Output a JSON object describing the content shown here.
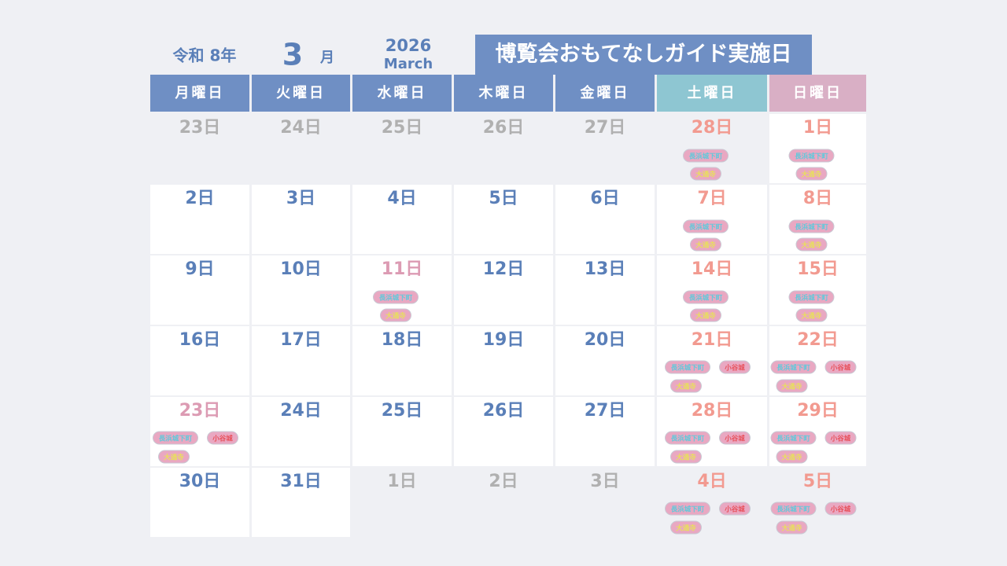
{
  "header": {
    "era": "令和 8年",
    "month": "3",
    "month_suffix": "月",
    "year": "2026",
    "month_en": "March",
    "title": "博覧会おもてなしガイド実施日"
  },
  "weekdays": [
    "月曜日",
    "火曜日",
    "水曜日",
    "木曜日",
    "金曜日",
    "土曜日",
    "日曜日"
  ],
  "weekday_colors": [
    "#6f8fc4",
    "#6f8fc4",
    "#6f8fc4",
    "#6f8fc4",
    "#6f8fc4",
    "#8ec6d2",
    "#d9afc5"
  ],
  "weeks": [
    [
      {
        "day": "23日",
        "tags": []
      },
      {
        "day": "24日",
        "tags": []
      },
      {
        "day": "25日",
        "tags": []
      },
      {
        "day": "26日",
        "tags": []
      },
      {
        "day": "27日",
        "tags": []
      },
      {
        "day": "28日",
        "tags": [
          {
            "label": "長浜城下町",
            "color": "#5fc9db"
          },
          {
            "label": "大通寺",
            "color": "#e8e05a"
          }
        ]
      },
      {
        "day": "1日",
        "tags": [
          {
            "label": "長浜城下町",
            "color": "#5fc9db"
          },
          {
            "label": "大通寺",
            "color": "#e8e05a"
          }
        ]
      }
    ],
    [
      {
        "day": "2日",
        "tags": []
      },
      {
        "day": "3日",
        "tags": []
      },
      {
        "day": "4日",
        "tags": []
      },
      {
        "day": "5日",
        "tags": []
      },
      {
        "day": "6日",
        "tags": []
      },
      {
        "day": "7日",
        "tags": [
          {
            "label": "長浜城下町",
            "color": "#5fc9db"
          },
          {
            "label": "大通寺",
            "color": "#e8e05a"
          }
        ]
      },
      {
        "day": "8日",
        "tags": [
          {
            "label": "長浜城下町",
            "color": "#5fc9db"
          },
          {
            "label": "大通寺",
            "color": "#e8e05a"
          }
        ]
      }
    ],
    [
      {
        "day": "9日",
        "tags": []
      },
      {
        "day": "10日",
        "tags": []
      },
      {
        "day": "11日",
        "tags": [
          {
            "label": "長浜城下町",
            "color": "#5fc9db"
          },
          {
            "label": "大通寺",
            "color": "#e8e05a"
          }
        ]
      },
      {
        "day": "12日",
        "tags": []
      },
      {
        "day": "13日",
        "tags": []
      },
      {
        "day": "14日",
        "tags": [
          {
            "label": "長浜城下町",
            "color": "#5fc9db"
          },
          {
            "label": "大通寺",
            "color": "#e8e05a"
          }
        ]
      },
      {
        "day": "15日",
        "tags": [
          {
            "label": "長浜城下町",
            "color": "#5fc9db"
          },
          {
            "label": "大通寺",
            "color": "#e8e05a"
          }
        ]
      }
    ],
    [
      {
        "day": "16日",
        "tags": []
      },
      {
        "day": "17日",
        "tags": []
      },
      {
        "day": "18日",
        "tags": []
      },
      {
        "day": "19日",
        "tags": []
      },
      {
        "day": "20日",
        "tags": []
      },
      {
        "day": "21日",
        "tags": [
          {
            "label": "長浜城下町",
            "color": "#5fc9db"
          },
          {
            "label": "小谷城",
            "color": "#e8505a"
          },
          {
            "label": "大通寺",
            "color": "#e8e05a"
          }
        ]
      },
      {
        "day": "22日",
        "tags": [
          {
            "label": "長浜城下町",
            "color": "#5fc9db"
          },
          {
            "label": "小谷城",
            "color": "#e8505a"
          },
          {
            "label": "大通寺",
            "color": "#e8e05a"
          }
        ]
      }
    ],
    [
      {
        "day": "23日",
        "tags": [
          {
            "label": "長浜城下町",
            "color": "#5fc9db"
          },
          {
            "label": "小谷城",
            "color": "#e8505a"
          },
          {
            "label": "大通寺",
            "color": "#e8e05a"
          }
        ]
      },
      {
        "day": "24日",
        "tags": []
      },
      {
        "day": "25日",
        "tags": []
      },
      {
        "day": "26日",
        "tags": []
      },
      {
        "day": "27日",
        "tags": []
      },
      {
        "day": "28日",
        "tags": [
          {
            "label": "長浜城下町",
            "color": "#5fc9db"
          },
          {
            "label": "小谷城",
            "color": "#e8505a"
          },
          {
            "label": "大通寺",
            "color": "#e8e05a"
          }
        ]
      },
      {
        "day": "29日",
        "tags": [
          {
            "label": "長浜城下町",
            "color": "#5fc9db"
          },
          {
            "label": "小谷城",
            "color": "#e8505a"
          },
          {
            "label": "大通寺",
            "color": "#e8e05a"
          }
        ]
      }
    ],
    [
      {
        "day": "30日",
        "tags": []
      },
      {
        "day": "31日",
        "tags": []
      },
      {
        "day": "1日",
        "tags": []
      },
      {
        "day": "2日",
        "tags": []
      },
      {
        "day": "3日",
        "tags": []
      },
      {
        "day": "4日",
        "tags": [
          {
            "label": "長浜城下町",
            "color": "#5fc9db"
          },
          {
            "label": "小谷城",
            "color": "#e8505a"
          },
          {
            "label": "大通寺",
            "color": "#e8e05a"
          }
        ]
      },
      {
        "day": "5日",
        "tags": [
          {
            "label": "長浜城下町",
            "color": "#5fc9db"
          },
          {
            "label": "小谷城",
            "color": "#e8505a"
          },
          {
            "label": "大通寺",
            "color": "#e8e05a"
          }
        ]
      }
    ]
  ]
}
